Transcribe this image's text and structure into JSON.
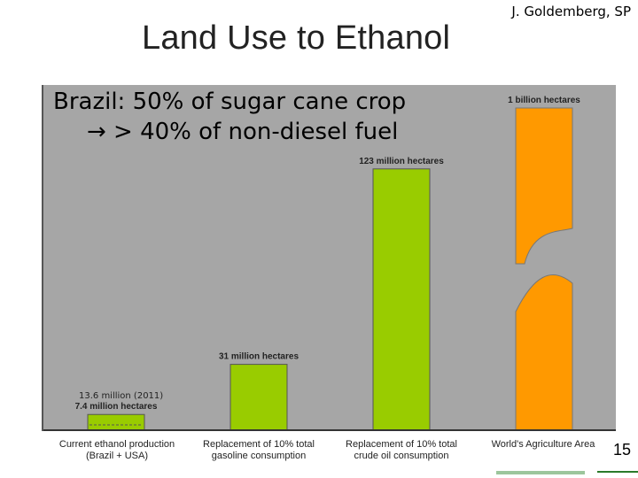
{
  "title": "Land Use to Ethanol",
  "credit": "J. Goldemberg, SP",
  "note": {
    "line1": "Brazil: 50% of sugar cane crop",
    "line2": "→ > 40% of non-diesel fuel"
  },
  "annotation_2011": "13.6 million (2011)",
  "page_number": "15",
  "colors": {
    "green": "#99cc00",
    "orange": "#ff9900",
    "background": "#a6a6a6"
  },
  "chart_data": {
    "type": "bar",
    "unit": "million hectares",
    "categories": [
      "Current ethanol production (Brazil + USA)",
      "Replacement of 10% total gasoline consumption",
      "Replacement of 10% total crude oil consumption",
      "World's Agriculture Area"
    ],
    "category_lines": [
      [
        "Current ethanol production",
        "(Brazil + USA)"
      ],
      [
        "Replacement of 10% total",
        "gasoline consumption"
      ],
      [
        "Replacement of 10% total",
        "crude oil consumption"
      ],
      [
        "World's Agriculture Area",
        ""
      ]
    ],
    "values": [
      7.4,
      31,
      123,
      1000
    ],
    "data_labels": [
      "7.4 million hectares",
      "31 million hectares",
      "123 million hectares",
      "1 billion hectares"
    ],
    "bar_colors": [
      "#99cc00",
      "#99cc00",
      "#99cc00",
      "#ff9900"
    ],
    "axis_break": "World's Agriculture Area bar is broken (not to scale)"
  }
}
